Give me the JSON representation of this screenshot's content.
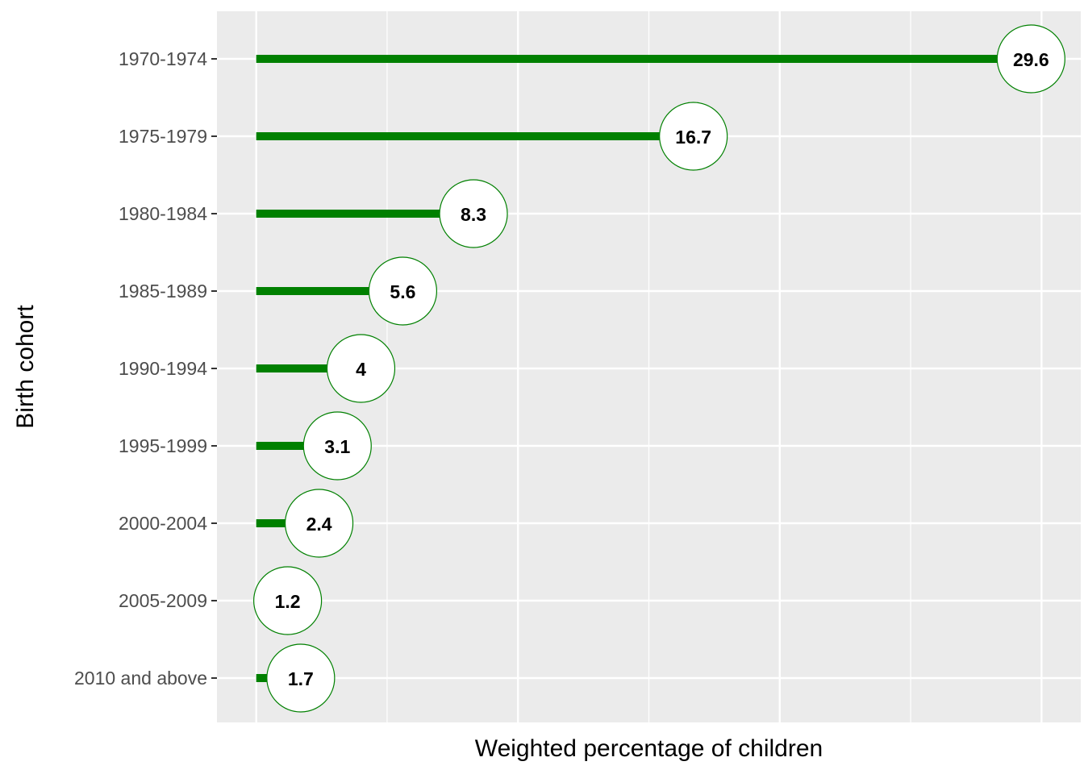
{
  "chart_data": {
    "type": "lollipop",
    "categories": [
      "1970-1974",
      "1975-1979",
      "1980-1984",
      "1985-1989",
      "1990-1994",
      "1995-1999",
      "2000-2004",
      "2005-2009",
      "2010 and above"
    ],
    "values": [
      29.6,
      16.7,
      8.3,
      5.6,
      4,
      3.1,
      2.4,
      1.2,
      1.7
    ],
    "value_labels": [
      "29.6",
      "16.7",
      "8.3",
      "5.6",
      "4",
      "3.1",
      "2.4",
      "1.2",
      "1.7"
    ],
    "xlabel": "Weighted percentage of children",
    "ylabel": "Birth cohort",
    "xlim": [
      -1.5,
      31.5
    ],
    "x_gridlines_major": [
      0,
      10,
      20,
      30
    ],
    "x_gridlines_minor": [
      5,
      15,
      25
    ],
    "x_tick_labels_shown": false,
    "grid": true,
    "legend": "none"
  },
  "colors": {
    "panel_background": "#ebebeb",
    "gridline": "#ffffff",
    "stem": "#008000",
    "marker_fill": "#ffffff",
    "marker_stroke": "#008000",
    "tick_mark": "#333333"
  }
}
